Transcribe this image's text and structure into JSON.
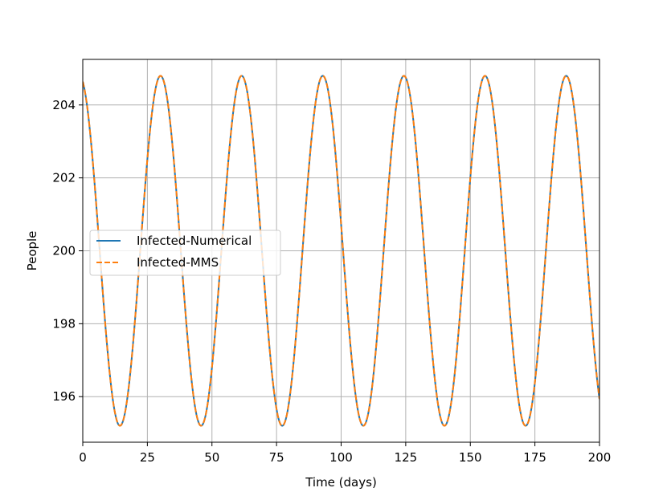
{
  "chart_data": {
    "type": "line",
    "title": "",
    "xlabel": "Time (days)",
    "ylabel": "People",
    "xlim": [
      0,
      200
    ],
    "ylim": [
      194.75,
      205.25
    ],
    "xticks": [
      0,
      25,
      50,
      75,
      100,
      125,
      150,
      175,
      200
    ],
    "yticks": [
      196,
      198,
      200,
      202,
      204
    ],
    "grid": true,
    "legend_position": "center-left",
    "series": [
      {
        "name": "Infected-Numerical",
        "color": "#1f77b4",
        "style": "solid",
        "model": "sinusoid",
        "mean": 200,
        "amplitude": 4.8,
        "period_days": 31.4,
        "peak_days": [
          -1.3,
          30.1,
          61.5,
          92.9,
          124.3,
          155.7,
          187.1
        ],
        "trough_days": [
          14.4,
          45.8,
          77.2,
          108.6,
          140.0,
          171.4
        ],
        "min": 195.2,
        "max": 204.8,
        "x_range": [
          0,
          200
        ]
      },
      {
        "name": "Infected-MMS",
        "color": "#ff7f0e",
        "style": "dashed",
        "model": "sinusoid",
        "mean": 200,
        "amplitude": 4.8,
        "period_days": 31.4,
        "peak_days": [
          -1.3,
          30.1,
          61.5,
          92.9,
          124.3,
          155.7,
          187.1
        ],
        "trough_days": [
          14.4,
          45.8,
          77.2,
          108.6,
          140.0,
          171.4
        ],
        "min": 195.2,
        "max": 204.8,
        "x_range": [
          0,
          200
        ]
      }
    ]
  }
}
